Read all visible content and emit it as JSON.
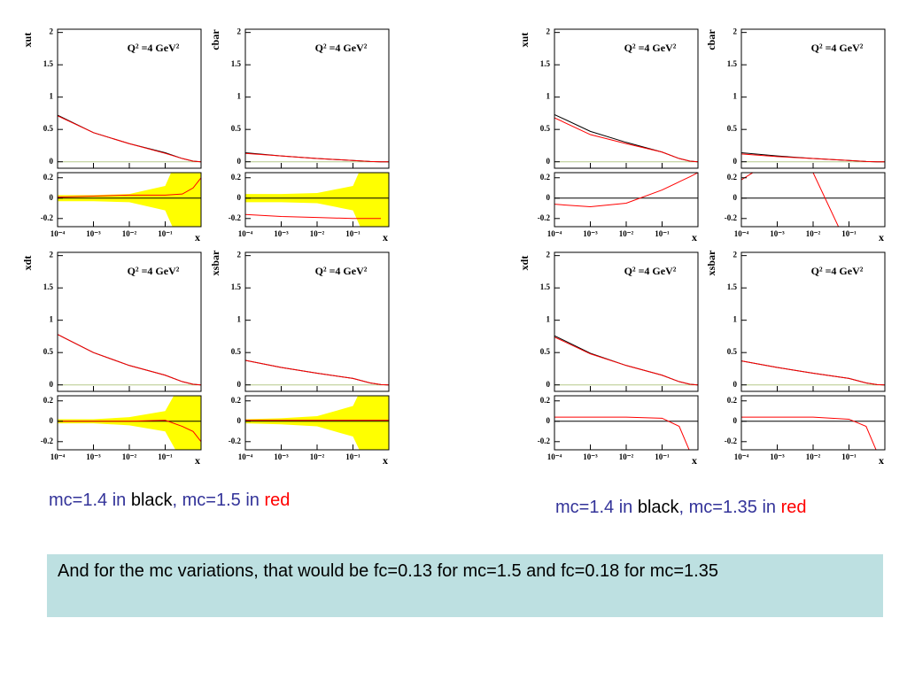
{
  "chart_data": [
    {
      "type": "line",
      "y_label": "xut",
      "annotation": "Q² =4 GeV²",
      "x": [
        0.0001,
        0.001,
        0.01,
        0.1,
        0.3,
        0.6,
        1
      ],
      "xlim": [
        0.0001,
        1
      ],
      "ylim": [
        -0.1,
        2.05
      ],
      "yticks": [
        0,
        0.5,
        1,
        1.5,
        2
      ],
      "zero_line": "#b5c98a",
      "series": [
        {
          "color": "#000000",
          "values": [
            0.72,
            0.45,
            0.28,
            0.14,
            0.05,
            0.01,
            0
          ]
        },
        {
          "color": "#ff0000",
          "values": [
            0.71,
            0.45,
            0.28,
            0.13,
            0.05,
            0.01,
            0
          ]
        }
      ]
    },
    {
      "type": "line",
      "x_label": "x",
      "x": [
        0.0001,
        0.001,
        0.01,
        0.1,
        0.3,
        0.6,
        1
      ],
      "xlim": [
        0.0001,
        1
      ],
      "xticks": [
        {
          "value": 0.0001,
          "label": "10⁻⁴"
        },
        {
          "value": 0.001,
          "label": "10⁻³"
        },
        {
          "value": 0.01,
          "label": "10⁻²"
        },
        {
          "value": 0.1,
          "label": "10⁻¹"
        }
      ],
      "ylim": [
        -0.28,
        0.25
      ],
      "yticks": [
        0.2,
        0,
        -0.2
      ],
      "zero_line": "#000000",
      "band": {
        "color": "#ffff00",
        "upper": [
          0.03,
          0.03,
          0.04,
          0.12,
          0.5,
          1,
          1
        ],
        "lower": [
          -0.03,
          -0.03,
          -0.04,
          -0.12,
          -0.5,
          -1,
          -1
        ]
      },
      "series": [
        {
          "color": "#ff0000",
          "values": [
            0.01,
            0.02,
            0.03,
            0.03,
            0.04,
            0.1,
            0.2
          ]
        }
      ]
    },
    {
      "type": "line",
      "y_label": "cbar",
      "annotation": "Q² =4 GeV²",
      "x": [
        0.0001,
        0.001,
        0.01,
        0.1,
        0.3,
        0.6,
        1
      ],
      "xlim": [
        0.0001,
        1
      ],
      "ylim": [
        -0.1,
        2.05
      ],
      "yticks": [
        0,
        0.5,
        1,
        1.5,
        2
      ],
      "zero_line": "#b5c98a",
      "series": [
        {
          "color": "#000000",
          "values": [
            0.14,
            0.09,
            0.05,
            0.02,
            0.005,
            0,
            0
          ]
        },
        {
          "color": "#ff0000",
          "values": [
            0.13,
            0.09,
            0.05,
            0.02,
            0.005,
            0,
            0
          ]
        }
      ]
    },
    {
      "type": "line",
      "x_label": "x",
      "x": [
        0.0001,
        0.001,
        0.01,
        0.1,
        0.3,
        0.6,
        1
      ],
      "xlim": [
        0.0001,
        1
      ],
      "xticks": [
        {
          "value": 0.0001,
          "label": "10⁻⁴"
        },
        {
          "value": 0.001,
          "label": "10⁻³"
        },
        {
          "value": 0.01,
          "label": "10⁻²"
        },
        {
          "value": 0.1,
          "label": "10⁻¹"
        }
      ],
      "ylim": [
        -0.28,
        0.25
      ],
      "yticks": [
        0.2,
        0,
        -0.2
      ],
      "zero_line": "#000000",
      "band": {
        "color": "#ffff00",
        "upper": [
          0.04,
          0.04,
          0.05,
          0.12,
          0.5,
          1,
          1
        ],
        "lower": [
          -0.04,
          -0.04,
          -0.05,
          -0.12,
          -0.5,
          -1,
          -1
        ]
      },
      "series": [
        {
          "color": "#ff0000",
          "values": [
            -0.16,
            -0.18,
            -0.19,
            -0.2,
            -0.2,
            -0.2,
            null
          ]
        }
      ]
    },
    {
      "type": "line",
      "y_label": "xdt",
      "annotation": "Q² =4 GeV²",
      "x": [
        0.0001,
        0.001,
        0.01,
        0.1,
        0.3,
        0.6,
        1
      ],
      "xlim": [
        0.0001,
        1
      ],
      "ylim": [
        -0.1,
        2.05
      ],
      "yticks": [
        0,
        0.5,
        1,
        1.5,
        2
      ],
      "zero_line": "#b5c98a",
      "series": [
        {
          "color": "#000000",
          "values": [
            0.78,
            0.5,
            0.3,
            0.15,
            0.05,
            0.01,
            0
          ]
        },
        {
          "color": "#ff0000",
          "values": [
            0.78,
            0.5,
            0.3,
            0.15,
            0.05,
            0.01,
            0
          ]
        }
      ]
    },
    {
      "type": "line",
      "x_label": "x",
      "x": [
        0.0001,
        0.001,
        0.01,
        0.1,
        0.3,
        0.6,
        1
      ],
      "xlim": [
        0.0001,
        1
      ],
      "xticks": [
        {
          "value": 0.0001,
          "label": "10⁻⁴"
        },
        {
          "value": 0.001,
          "label": "10⁻³"
        },
        {
          "value": 0.01,
          "label": "10⁻²"
        },
        {
          "value": 0.1,
          "label": "10⁻¹"
        }
      ],
      "ylim": [
        -0.28,
        0.25
      ],
      "yticks": [
        0.2,
        0,
        -0.2
      ],
      "zero_line": "#000000",
      "band": {
        "color": "#ffff00",
        "upper": [
          0.02,
          0.02,
          0.04,
          0.1,
          0.4,
          1,
          1
        ],
        "lower": [
          -0.02,
          -0.02,
          -0.04,
          -0.1,
          -0.4,
          -1,
          -1
        ]
      },
      "series": [
        {
          "color": "#ff0000",
          "values": [
            0,
            0,
            0,
            0.01,
            -0.05,
            -0.1,
            -0.2
          ]
        }
      ]
    },
    {
      "type": "line",
      "y_label": "xsbar",
      "annotation": "Q² =4 GeV²",
      "x": [
        0.0001,
        0.001,
        0.01,
        0.1,
        0.3,
        0.6,
        1
      ],
      "xlim": [
        0.0001,
        1
      ],
      "ylim": [
        -0.1,
        2.05
      ],
      "yticks": [
        0,
        0.5,
        1,
        1.5,
        2
      ],
      "zero_line": "#b5c98a",
      "series": [
        {
          "color": "#000000",
          "values": [
            0.38,
            0.27,
            0.18,
            0.1,
            0.03,
            0.005,
            0
          ]
        },
        {
          "color": "#ff0000",
          "values": [
            0.38,
            0.27,
            0.18,
            0.1,
            0.03,
            0.005,
            0
          ]
        }
      ]
    },
    {
      "type": "line",
      "x_label": "x",
      "x": [
        0.0001,
        0.001,
        0.01,
        0.1,
        0.3,
        0.6,
        1
      ],
      "xlim": [
        0.0001,
        1
      ],
      "xticks": [
        {
          "value": 0.0001,
          "label": "10⁻⁴"
        },
        {
          "value": 0.001,
          "label": "10⁻³"
        },
        {
          "value": 0.01,
          "label": "10⁻²"
        },
        {
          "value": 0.1,
          "label": "10⁻¹"
        }
      ],
      "ylim": [
        -0.28,
        0.25
      ],
      "yticks": [
        0.2,
        0,
        -0.2
      ],
      "zero_line": "#000000",
      "band": {
        "color": "#ffff00",
        "upper": [
          0.02,
          0.03,
          0.05,
          0.15,
          0.5,
          1,
          1
        ],
        "lower": [
          -0.02,
          -0.03,
          -0.05,
          -0.15,
          -0.5,
          -1,
          -1
        ]
      },
      "series": [
        {
          "color": "#ff0000",
          "values": [
            0.01,
            0.01,
            0.01,
            0.01,
            0.01,
            0.01,
            0.01
          ]
        }
      ]
    },
    {
      "type": "line",
      "y_label": "xut",
      "annotation": "Q² =4 GeV²",
      "x": [
        0.0001,
        0.001,
        0.01,
        0.1,
        0.3,
        0.6,
        1
      ],
      "xlim": [
        0.0001,
        1
      ],
      "ylim": [
        -0.1,
        2.05
      ],
      "yticks": [
        0,
        0.5,
        1,
        1.5,
        2
      ],
      "zero_line": "#b5c98a",
      "series": [
        {
          "color": "#000000",
          "values": [
            0.73,
            0.47,
            0.3,
            0.15,
            0.05,
            0.01,
            0
          ]
        },
        {
          "color": "#ff0000",
          "values": [
            0.68,
            0.42,
            0.28,
            0.15,
            0.05,
            0.01,
            0
          ]
        }
      ]
    },
    {
      "type": "line",
      "x_label": "x",
      "x": [
        0.0001,
        0.001,
        0.01,
        0.1,
        0.3,
        0.6,
        1
      ],
      "xlim": [
        0.0001,
        1
      ],
      "xticks": [
        {
          "value": 0.0001,
          "label": "10⁻⁴"
        },
        {
          "value": 0.001,
          "label": "10⁻³"
        },
        {
          "value": 0.01,
          "label": "10⁻²"
        },
        {
          "value": 0.1,
          "label": "10⁻¹"
        }
      ],
      "ylim": [
        -0.28,
        0.25
      ],
      "yticks": [
        0.2,
        0,
        -0.2
      ],
      "zero_line": "#000000",
      "series": [
        {
          "color": "#ff0000",
          "values": [
            -0.06,
            -0.085,
            -0.05,
            0.08,
            0.16,
            0.21,
            0.25
          ]
        }
      ]
    },
    {
      "type": "line",
      "y_label": "cbar",
      "annotation": "Q² =4 GeV²",
      "x": [
        0.0001,
        0.001,
        0.01,
        0.1,
        0.3,
        0.6,
        1
      ],
      "xlim": [
        0.0001,
        1
      ],
      "ylim": [
        -0.1,
        2.05
      ],
      "yticks": [
        0,
        0.5,
        1,
        1.5,
        2
      ],
      "zero_line": "#b5c98a",
      "series": [
        {
          "color": "#000000",
          "values": [
            0.14,
            0.09,
            0.05,
            0.02,
            0.005,
            0,
            0
          ]
        },
        {
          "color": "#ff0000",
          "values": [
            0.12,
            0.08,
            0.05,
            0.02,
            0.005,
            0,
            0
          ]
        }
      ]
    },
    {
      "type": "line",
      "x_label": "x",
      "x": [
        0.0001,
        0.001,
        0.01,
        0.1,
        0.3,
        0.6,
        1
      ],
      "xlim": [
        0.0001,
        1
      ],
      "xticks": [
        {
          "value": 0.0001,
          "label": "10⁻⁴"
        },
        {
          "value": 0.001,
          "label": "10⁻³"
        },
        {
          "value": 0.01,
          "label": "10⁻²"
        },
        {
          "value": 0.1,
          "label": "10⁻¹"
        }
      ],
      "ylim": [
        -0.28,
        0.25
      ],
      "yticks": [
        0.2,
        0,
        -0.2
      ],
      "zero_line": "#000000",
      "series": [
        {
          "color": "#ff0000",
          "values": [
            0.18,
            0.4,
            0.25,
            -0.5,
            null,
            null,
            null
          ]
        }
      ]
    },
    {
      "type": "line",
      "y_label": "xdt",
      "annotation": "Q² =4 GeV²",
      "x": [
        0.0001,
        0.001,
        0.01,
        0.1,
        0.3,
        0.6,
        1
      ],
      "xlim": [
        0.0001,
        1
      ],
      "ylim": [
        -0.1,
        2.05
      ],
      "yticks": [
        0,
        0.5,
        1,
        1.5,
        2
      ],
      "zero_line": "#b5c98a",
      "series": [
        {
          "color": "#000000",
          "values": [
            0.76,
            0.49,
            0.3,
            0.15,
            0.05,
            0.01,
            0
          ]
        },
        {
          "color": "#ff0000",
          "values": [
            0.74,
            0.48,
            0.3,
            0.15,
            0.05,
            0.01,
            0
          ]
        }
      ]
    },
    {
      "type": "line",
      "x_label": "x",
      "x": [
        0.0001,
        0.001,
        0.01,
        0.1,
        0.3,
        0.6,
        1
      ],
      "xlim": [
        0.0001,
        1
      ],
      "xticks": [
        {
          "value": 0.0001,
          "label": "10⁻⁴"
        },
        {
          "value": 0.001,
          "label": "10⁻³"
        },
        {
          "value": 0.01,
          "label": "10⁻²"
        },
        {
          "value": 0.1,
          "label": "10⁻¹"
        }
      ],
      "ylim": [
        -0.28,
        0.25
      ],
      "yticks": [
        0.2,
        0,
        -0.2
      ],
      "zero_line": "#000000",
      "series": [
        {
          "color": "#ff0000",
          "values": [
            0.04,
            0.04,
            0.04,
            0.03,
            -0.05,
            -0.3,
            null
          ]
        }
      ]
    },
    {
      "type": "line",
      "y_label": "xsbar",
      "annotation": "Q² =4 GeV²",
      "x": [
        0.0001,
        0.001,
        0.01,
        0.1,
        0.3,
        0.6,
        1
      ],
      "xlim": [
        0.0001,
        1
      ],
      "ylim": [
        -0.1,
        2.05
      ],
      "yticks": [
        0,
        0.5,
        1,
        1.5,
        2
      ],
      "zero_line": "#b5c98a",
      "series": [
        {
          "color": "#000000",
          "values": [
            0.37,
            0.27,
            0.18,
            0.1,
            0.03,
            0.005,
            0
          ]
        },
        {
          "color": "#ff0000",
          "values": [
            0.37,
            0.27,
            0.18,
            0.1,
            0.03,
            0.005,
            0
          ]
        }
      ]
    },
    {
      "type": "line",
      "x_label": "x",
      "x": [
        0.0001,
        0.001,
        0.01,
        0.1,
        0.3,
        0.6,
        1
      ],
      "xlim": [
        0.0001,
        1
      ],
      "xticks": [
        {
          "value": 0.0001,
          "label": "10⁻⁴"
        },
        {
          "value": 0.001,
          "label": "10⁻³"
        },
        {
          "value": 0.01,
          "label": "10⁻²"
        },
        {
          "value": 0.1,
          "label": "10⁻¹"
        }
      ],
      "ylim": [
        -0.28,
        0.25
      ],
      "yticks": [
        0.2,
        0,
        -0.2
      ],
      "zero_line": "#000000",
      "series": [
        {
          "color": "#ff0000",
          "values": [
            0.04,
            0.04,
            0.04,
            0.02,
            -0.05,
            -0.3,
            null
          ]
        }
      ]
    }
  ],
  "captions": [
    {
      "parts": [
        {
          "text": "mc=1.4 in ",
          "color": "#333399"
        },
        {
          "text": "black",
          "color": "#000000"
        },
        {
          "text": ", mc=1.5 in ",
          "color": "#333399"
        },
        {
          "text": "red",
          "color": "#ff0000"
        }
      ]
    },
    {
      "parts": [
        {
          "text": "mc=1.4 in ",
          "color": "#333399"
        },
        {
          "text": "black",
          "color": "#000000"
        },
        {
          "text": ", mc=1.35 in ",
          "color": "#333399"
        },
        {
          "text": "red",
          "color": "#ff0000"
        }
      ]
    }
  ],
  "note": "And for the mc variations, that would be fc=0.13 for mc=1.5 and fc=0.18 for mc=1.35"
}
